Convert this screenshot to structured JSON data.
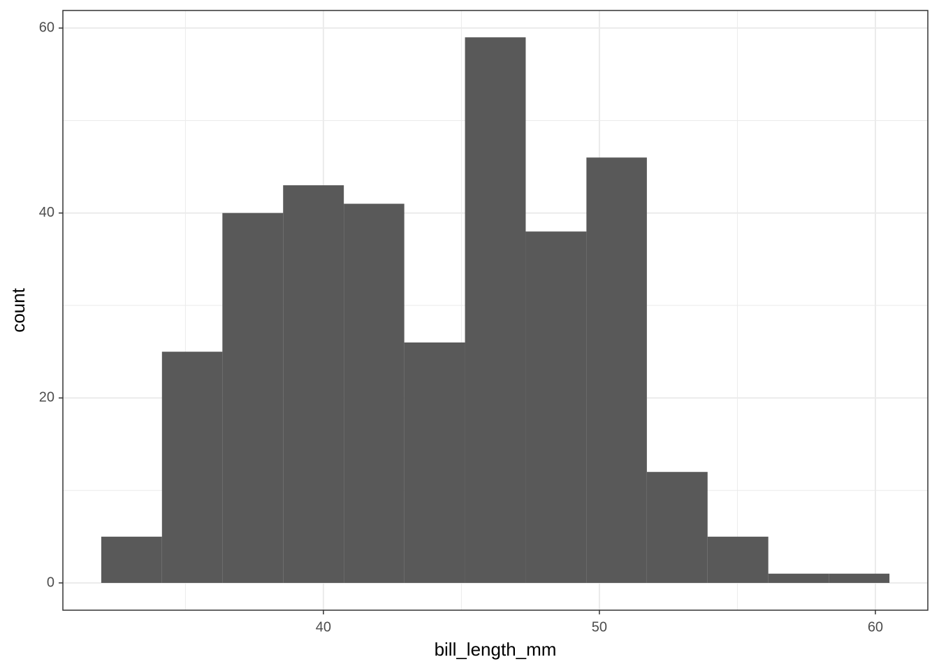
{
  "chart_data": {
    "type": "histogram",
    "x_label": "bill_length_mm",
    "y_label": "count",
    "bins": [
      31.95,
      34.15,
      36.34,
      38.54,
      40.74,
      42.93,
      45.13,
      47.33,
      49.53,
      51.72,
      53.92,
      56.12,
      58.31,
      60.51
    ],
    "values": [
      5,
      25,
      40,
      43,
      41,
      26,
      59,
      38,
      46,
      12,
      5,
      1,
      1
    ],
    "color": "#595959",
    "xlim": [
      30.56,
      61.9
    ],
    "ylim": [
      -2.95,
      61.9
    ],
    "xticks": [
      40,
      50,
      60
    ],
    "yticks": [
      0,
      20,
      40,
      60
    ],
    "minor_xticks": [
      35,
      45,
      55
    ],
    "minor_yticks": [
      10,
      30,
      50
    ],
    "grid": true
  }
}
